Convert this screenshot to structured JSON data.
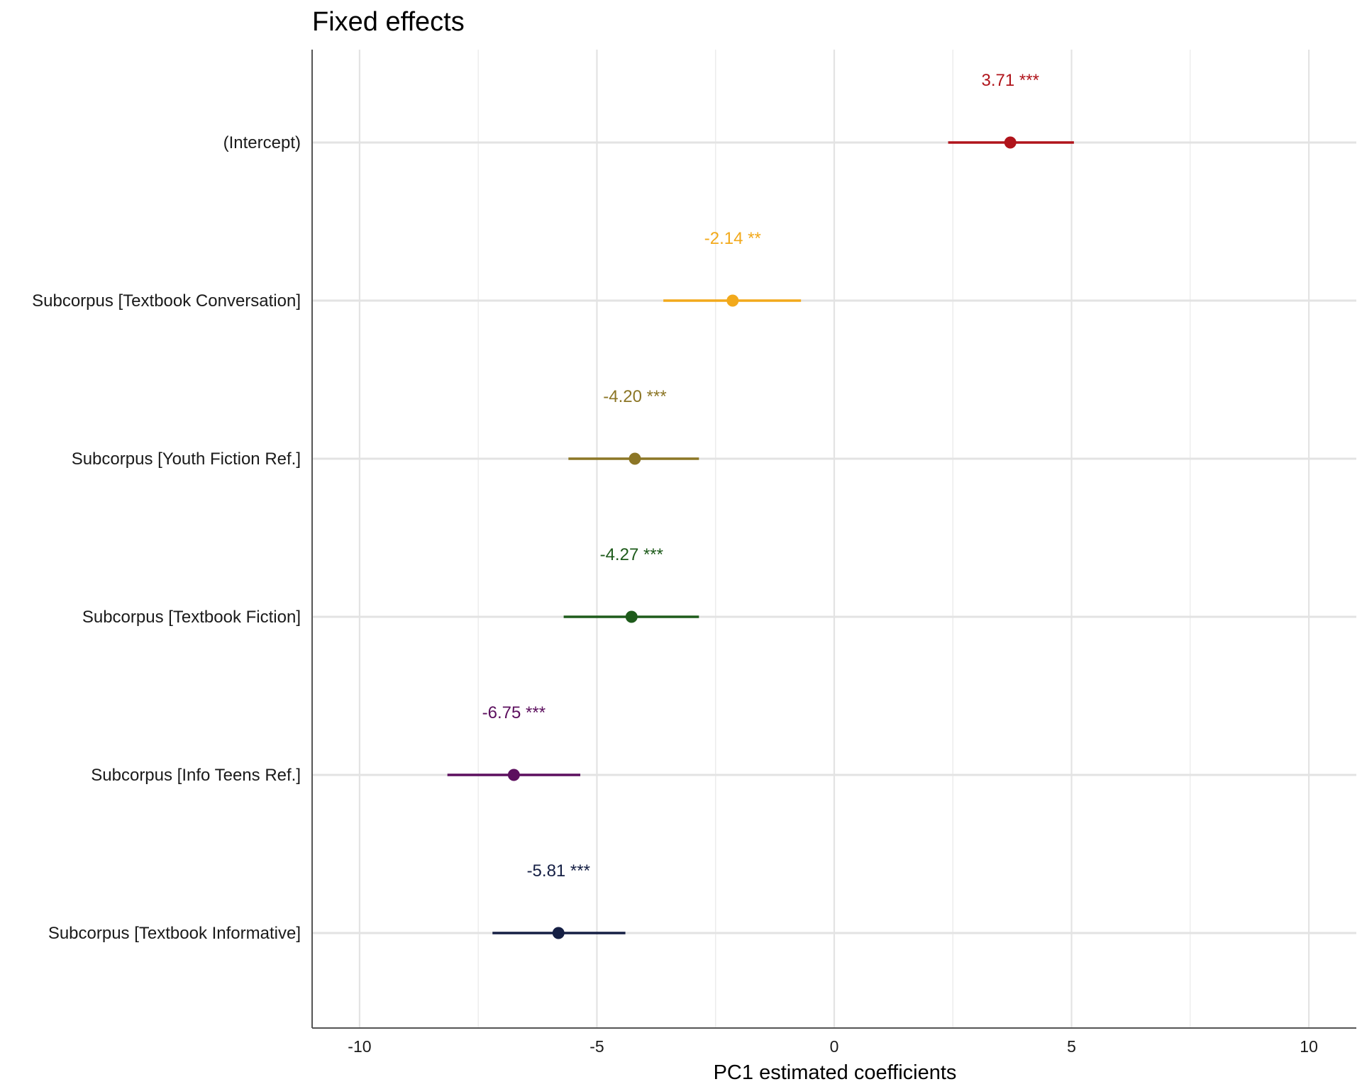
{
  "chart_data": {
    "type": "forest",
    "title": "Fixed effects",
    "xlabel": "PC1 estimated coefficients",
    "ylabel": "",
    "xlim": [
      -11,
      11
    ],
    "xticks": [
      {
        "value": -10,
        "label": "-10"
      },
      {
        "value": -5,
        "label": "-5"
      },
      {
        "value": 0,
        "label": "0"
      },
      {
        "value": 5,
        "label": "5"
      },
      {
        "value": 10,
        "label": "10"
      }
    ],
    "minor_grid": [
      -7.5,
      -2.5,
      2.5,
      7.5
    ],
    "grid": true,
    "legend": "none",
    "terms": [
      {
        "term": "(Intercept)",
        "estimate": 3.71,
        "low": 2.4,
        "high": 5.05,
        "label": "3.71 ***",
        "color": "#b0141b"
      },
      {
        "term": "Subcorpus [Textbook Conversation]",
        "estimate": -2.14,
        "low": -3.6,
        "high": -0.7,
        "label": "-2.14 **",
        "color": "#f2a91b"
      },
      {
        "term": "Subcorpus [Youth Fiction Ref.]",
        "estimate": -4.2,
        "low": -5.6,
        "high": -2.85,
        "label": "-4.20 ***",
        "color": "#8c7626"
      },
      {
        "term": "Subcorpus [Textbook Fiction]",
        "estimate": -4.27,
        "low": -5.7,
        "high": -2.85,
        "label": "-4.27 ***",
        "color": "#1e5b1b"
      },
      {
        "term": "Subcorpus [Info Teens Ref.]",
        "estimate": -6.75,
        "low": -8.15,
        "high": -5.35,
        "label": "-6.75 ***",
        "color": "#5c0f5e"
      },
      {
        "term": "Subcorpus [Textbook Informative]",
        "estimate": -5.81,
        "low": -7.2,
        "high": -4.4,
        "label": "-5.81 ***",
        "color": "#151f44"
      }
    ]
  }
}
